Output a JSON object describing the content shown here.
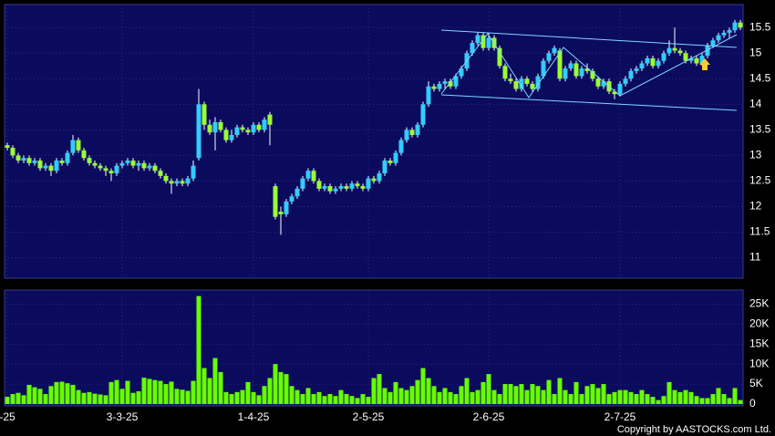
{
  "chart_data": {
    "type": "candlestick",
    "categories": [
      "-25",
      null,
      null,
      null,
      null,
      null,
      null,
      null,
      null,
      null,
      null,
      null,
      null,
      null,
      null,
      null,
      null,
      null,
      null,
      null,
      null,
      "3-3-25",
      null,
      null,
      null,
      null,
      null,
      null,
      null,
      null,
      null,
      null,
      null,
      null,
      null,
      null,
      null,
      null,
      null,
      null,
      null,
      null,
      null,
      null,
      null,
      "1-4-25",
      null,
      null,
      null,
      null,
      null,
      null,
      null,
      null,
      null,
      null,
      null,
      null,
      null,
      null,
      null,
      null,
      null,
      null,
      null,
      null,
      "2-5-25",
      null,
      null,
      null,
      null,
      null,
      null,
      null,
      null,
      null,
      null,
      null,
      null,
      null,
      null,
      null,
      null,
      null,
      null,
      null,
      null,
      null,
      "2-6-25",
      null,
      null,
      null,
      null,
      null,
      null,
      null,
      null,
      null,
      null,
      null,
      null,
      null,
      null,
      null,
      null,
      null,
      null,
      null,
      null,
      null,
      null,
      null,
      "2-7-25",
      null,
      null,
      null,
      null,
      null,
      null,
      null,
      null,
      null,
      null,
      null,
      null,
      null,
      null,
      null,
      null,
      null,
      null,
      null,
      null,
      null,
      null
    ],
    "ohlc": [
      [
        13.2,
        13.25,
        13.1,
        13.15
      ],
      [
        13.15,
        13.2,
        12.95,
        13.0
      ],
      [
        13.0,
        13.05,
        12.85,
        12.9
      ],
      [
        12.9,
        13.0,
        12.85,
        12.95
      ],
      [
        12.95,
        13.0,
        12.8,
        12.85
      ],
      [
        12.85,
        12.95,
        12.8,
        12.9
      ],
      [
        12.9,
        12.95,
        12.7,
        12.75
      ],
      [
        12.75,
        12.85,
        12.7,
        12.8
      ],
      [
        12.8,
        12.85,
        12.6,
        12.7
      ],
      [
        12.7,
        12.95,
        12.65,
        12.9
      ],
      [
        12.9,
        12.95,
        12.8,
        12.85
      ],
      [
        12.85,
        13.1,
        12.8,
        13.05
      ],
      [
        13.05,
        13.4,
        13.0,
        13.3
      ],
      [
        13.3,
        13.35,
        13.05,
        13.1
      ],
      [
        13.1,
        13.15,
        12.9,
        12.95
      ],
      [
        12.95,
        13.0,
        12.8,
        12.85
      ],
      [
        12.85,
        12.9,
        12.75,
        12.8
      ],
      [
        12.8,
        12.85,
        12.7,
        12.75
      ],
      [
        12.75,
        12.8,
        12.6,
        12.7
      ],
      [
        12.7,
        12.75,
        12.5,
        12.65
      ],
      [
        12.65,
        12.85,
        12.6,
        12.8
      ],
      [
        12.8,
        12.9,
        12.75,
        12.85
      ],
      [
        12.85,
        12.95,
        12.8,
        12.9
      ],
      [
        12.9,
        12.95,
        12.75,
        12.8
      ],
      [
        12.8,
        12.9,
        12.7,
        12.85
      ],
      [
        12.85,
        12.9,
        12.7,
        12.75
      ],
      [
        12.75,
        12.85,
        12.7,
        12.8
      ],
      [
        12.8,
        12.85,
        12.65,
        12.7
      ],
      [
        12.7,
        12.75,
        12.55,
        12.6
      ],
      [
        12.6,
        12.65,
        12.45,
        12.5
      ],
      [
        12.5,
        12.55,
        12.25,
        12.45
      ],
      [
        12.45,
        12.55,
        12.4,
        12.5
      ],
      [
        12.5,
        12.55,
        12.4,
        12.45
      ],
      [
        12.45,
        12.6,
        12.4,
        12.55
      ],
      [
        12.55,
        12.9,
        12.5,
        12.8
      ],
      [
        12.95,
        14.3,
        12.9,
        14.0
      ],
      [
        14.0,
        14.05,
        13.5,
        13.6
      ],
      [
        13.6,
        13.7,
        13.4,
        13.45
      ],
      [
        13.45,
        13.75,
        13.1,
        13.65
      ],
      [
        13.65,
        13.7,
        13.45,
        13.5
      ],
      [
        13.5,
        13.55,
        13.25,
        13.3
      ],
      [
        13.3,
        13.5,
        13.25,
        13.4
      ],
      [
        13.4,
        13.6,
        13.35,
        13.55
      ],
      [
        13.55,
        13.6,
        13.45,
        13.5
      ],
      [
        13.5,
        13.55,
        13.4,
        13.45
      ],
      [
        13.45,
        13.65,
        13.4,
        13.6
      ],
      [
        13.6,
        13.65,
        13.45,
        13.5
      ],
      [
        13.5,
        13.75,
        13.45,
        13.7
      ],
      [
        13.8,
        13.85,
        13.2,
        13.6
      ],
      [
        12.4,
        12.45,
        11.75,
        11.8
      ],
      [
        11.9,
        12.0,
        11.45,
        11.85
      ],
      [
        11.85,
        12.15,
        11.8,
        12.1
      ],
      [
        12.1,
        12.25,
        12.05,
        12.2
      ],
      [
        12.2,
        12.4,
        12.15,
        12.35
      ],
      [
        12.35,
        12.6,
        12.3,
        12.55
      ],
      [
        12.55,
        12.75,
        12.5,
        12.7
      ],
      [
        12.7,
        12.75,
        12.45,
        12.5
      ],
      [
        12.5,
        12.55,
        12.3,
        12.35
      ],
      [
        12.35,
        12.45,
        12.3,
        12.4
      ],
      [
        12.4,
        12.45,
        12.25,
        12.3
      ],
      [
        12.3,
        12.4,
        12.25,
        12.35
      ],
      [
        12.35,
        12.45,
        12.3,
        12.4
      ],
      [
        12.4,
        12.45,
        12.3,
        12.35
      ],
      [
        12.35,
        12.5,
        12.3,
        12.45
      ],
      [
        12.45,
        12.5,
        12.35,
        12.4
      ],
      [
        12.4,
        12.45,
        12.3,
        12.35
      ],
      [
        12.35,
        12.6,
        12.3,
        12.55
      ],
      [
        12.55,
        12.6,
        12.45,
        12.5
      ],
      [
        12.5,
        12.7,
        12.45,
        12.65
      ],
      [
        12.65,
        12.95,
        12.6,
        12.9
      ],
      [
        12.9,
        12.95,
        12.8,
        12.85
      ],
      [
        12.85,
        13.1,
        12.8,
        13.05
      ],
      [
        13.05,
        13.35,
        13.0,
        13.3
      ],
      [
        13.3,
        13.55,
        13.25,
        13.5
      ],
      [
        13.5,
        13.55,
        13.35,
        13.4
      ],
      [
        13.4,
        13.65,
        13.35,
        13.6
      ],
      [
        13.6,
        14.05,
        13.55,
        14.0
      ],
      [
        14.0,
        14.45,
        13.95,
        14.35
      ],
      [
        14.35,
        14.4,
        14.25,
        14.3
      ],
      [
        14.3,
        14.45,
        14.25,
        14.4
      ],
      [
        14.4,
        14.5,
        14.3,
        14.45
      ],
      [
        14.45,
        14.5,
        14.3,
        14.35
      ],
      [
        14.35,
        14.6,
        14.3,
        14.55
      ],
      [
        14.55,
        14.75,
        14.5,
        14.7
      ],
      [
        14.7,
        15.05,
        14.65,
        15.0
      ],
      [
        15.0,
        15.25,
        14.95,
        15.2
      ],
      [
        15.2,
        15.4,
        15.15,
        15.35
      ],
      [
        15.35,
        15.4,
        15.05,
        15.1
      ],
      [
        15.1,
        15.4,
        15.05,
        15.3
      ],
      [
        15.3,
        15.35,
        15.05,
        15.1
      ],
      [
        15.1,
        15.15,
        14.7,
        14.75
      ],
      [
        14.75,
        14.8,
        14.45,
        14.5
      ],
      [
        14.5,
        14.6,
        14.4,
        14.45
      ],
      [
        14.45,
        14.5,
        14.25,
        14.3
      ],
      [
        14.3,
        14.55,
        14.25,
        14.5
      ],
      [
        14.5,
        14.55,
        14.35,
        14.4
      ],
      [
        14.4,
        14.45,
        14.25,
        14.3
      ],
      [
        14.3,
        14.6,
        14.25,
        14.55
      ],
      [
        14.55,
        14.9,
        14.5,
        14.85
      ],
      [
        14.85,
        15.05,
        14.8,
        15.0
      ],
      [
        15.0,
        15.15,
        14.95,
        15.1
      ],
      [
        15.05,
        15.1,
        14.45,
        14.5
      ],
      [
        14.5,
        14.75,
        14.45,
        14.7
      ],
      [
        14.7,
        14.85,
        14.65,
        14.8
      ],
      [
        14.8,
        14.85,
        14.5,
        14.55
      ],
      [
        14.55,
        14.75,
        14.5,
        14.7
      ],
      [
        14.7,
        14.8,
        14.6,
        14.65
      ],
      [
        14.65,
        14.7,
        14.45,
        14.5
      ],
      [
        14.5,
        14.55,
        14.3,
        14.35
      ],
      [
        14.35,
        14.5,
        14.3,
        14.45
      ],
      [
        14.45,
        14.5,
        14.2,
        14.25
      ],
      [
        14.25,
        14.3,
        14.1,
        14.2
      ],
      [
        14.2,
        14.45,
        14.15,
        14.4
      ],
      [
        14.4,
        14.55,
        14.35,
        14.5
      ],
      [
        14.5,
        14.7,
        14.45,
        14.65
      ],
      [
        14.65,
        14.75,
        14.6,
        14.7
      ],
      [
        14.7,
        14.85,
        14.65,
        14.8
      ],
      [
        14.8,
        14.95,
        14.75,
        14.9
      ],
      [
        14.9,
        14.95,
        14.7,
        14.75
      ],
      [
        14.75,
        14.9,
        14.7,
        14.85
      ],
      [
        14.85,
        15.05,
        14.8,
        15.0
      ],
      [
        15.0,
        15.25,
        14.95,
        15.1
      ],
      [
        15.1,
        15.5,
        15.0,
        15.05
      ],
      [
        15.05,
        15.1,
        14.95,
        15.0
      ],
      [
        15.0,
        15.05,
        14.8,
        14.85
      ],
      [
        14.85,
        14.95,
        14.8,
        14.9
      ],
      [
        14.9,
        14.95,
        14.75,
        14.8
      ],
      [
        14.8,
        15.0,
        14.75,
        14.95
      ],
      [
        14.95,
        15.2,
        14.9,
        15.15
      ],
      [
        15.15,
        15.3,
        15.1,
        15.25
      ],
      [
        15.25,
        15.4,
        15.2,
        15.35
      ],
      [
        15.35,
        15.45,
        15.3,
        15.4
      ],
      [
        15.4,
        15.5,
        15.3,
        15.45
      ],
      [
        15.45,
        15.65,
        15.4,
        15.6
      ],
      [
        15.6,
        15.65,
        15.45,
        15.5
      ]
    ],
    "volume": [
      1800,
      2500,
      2800,
      2200,
      4800,
      4200,
      3800,
      2500,
      4500,
      5500,
      5600,
      5200,
      4800,
      3500,
      2800,
      3000,
      2600,
      2400,
      2200,
      5500,
      6000,
      3800,
      5800,
      2800,
      3200,
      6600,
      6300,
      6000,
      5800,
      5000,
      5600,
      3800,
      3600,
      3300,
      5800,
      27000,
      9000,
      6500,
      11500,
      8000,
      3000,
      2500,
      3000,
      3500,
      5500,
      3000,
      2200,
      4500,
      6500,
      10000,
      8000,
      7500,
      4500,
      3500,
      2500,
      4000,
      2500,
      3000,
      2000,
      2500,
      2000,
      3500,
      2500,
      2000,
      1500,
      2500,
      1800,
      6500,
      7500,
      4000,
      3000,
      5500,
      4000,
      3500,
      4500,
      6000,
      9000,
      6500,
      4500,
      3000,
      4000,
      3000,
      2500,
      4500,
      6500,
      3000,
      3500,
      5500,
      7500,
      3500,
      2500,
      5000,
      5000,
      4500,
      5000,
      3500,
      5000,
      4500,
      3500,
      6000,
      2500,
      6500,
      3500,
      2500,
      5500,
      2500,
      4500,
      5000,
      4000,
      5000,
      2500,
      3000,
      3500,
      3500,
      3000,
      2500,
      3500,
      2500,
      1800,
      1000,
      2000,
      5500,
      3500,
      3000,
      3500,
      3000,
      2000,
      1500,
      1500,
      2500,
      4000,
      2500,
      1500,
      4000,
      1000
    ],
    "up_color": "#33ccff",
    "down_color": "#99ff33",
    "volume_color": "#66ff00",
    "ylim": [
      10.6,
      15.95
    ],
    "yticks": [
      11,
      11.5,
      12,
      12.5,
      13,
      13.5,
      14,
      14.5,
      15,
      15.5
    ],
    "volume_ylim": [
      0,
      28500
    ],
    "volume_yticks": [
      0,
      {
        "value": 5000,
        "label": "5K"
      },
      {
        "value": 10000,
        "label": "10K"
      },
      {
        "value": 15000,
        "label": "15K"
      },
      {
        "value": 20000,
        "label": "20K"
      },
      {
        "value": 25000,
        "label": "25K"
      }
    ],
    "grid": true
  },
  "copyright": "Copyright by AASTOCKS.com Ltd."
}
